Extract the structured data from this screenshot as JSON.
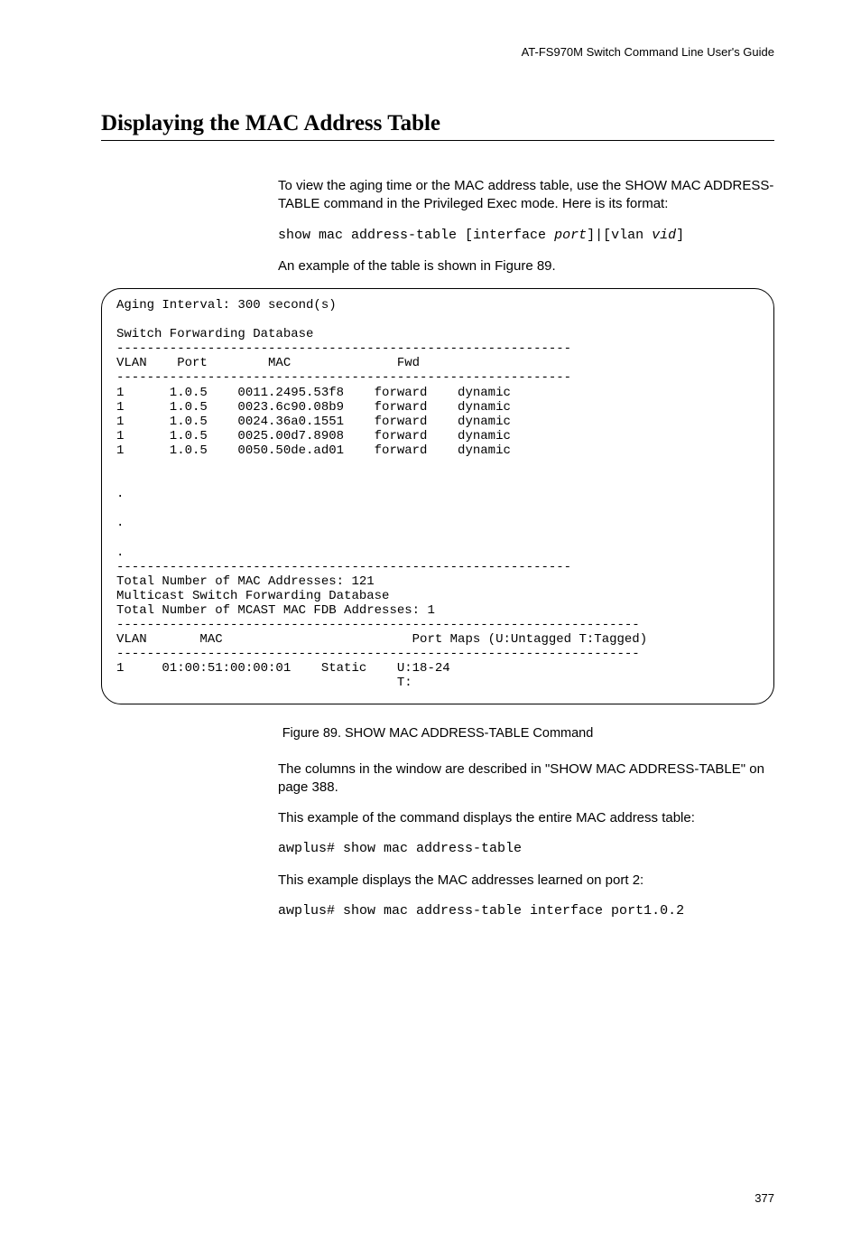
{
  "header": {
    "guide_title": "AT-FS970M Switch Command Line User's Guide"
  },
  "title": "Displaying the MAC Address Table",
  "para1": "To view the aging time or the MAC address table, use the SHOW MAC ADDRESS-TABLE command in the Privileged Exec mode. Here is its format:",
  "syntax": {
    "prefix": "show mac address-table [interface ",
    "arg1": "port",
    "mid": "]|[vlan ",
    "arg2": "vid",
    "suffix": "]"
  },
  "para2": "An example of the table is shown in Figure 89.",
  "terminal": {
    "aging_line": "Aging Interval: 300 second(s)",
    "db_title": "Switch Forwarding Database",
    "rule60": "------------------------------------------------------------",
    "hdr_row": "VLAN    Port        MAC              Fwd",
    "rows": [
      "1      1.0.5    0011.2495.53f8    forward    dynamic",
      "1      1.0.5    0023.6c90.08b9    forward    dynamic",
      "1      1.0.5    0024.36a0.1551    forward    dynamic",
      "1      1.0.5    0025.00d7.8908    forward    dynamic",
      "1      1.0.5    0050.50de.ad01    forward    dynamic"
    ],
    "dots": ".",
    "total_mac": "Total Number of MAC Addresses: 121",
    "mcast_title": "Multicast Switch Forwarding Database",
    "mcast_total": "Total Number of MCAST MAC FDB Addresses: 1",
    "rule69": "---------------------------------------------------------------------",
    "mcast_hdr": "VLAN       MAC                         Port Maps (U:Untagged T:Tagged)",
    "mcast_row1": "1     01:00:51:00:00:01    Static    U:18-24",
    "mcast_row2": "                                     T:"
  },
  "figure_caption": "Figure 89. SHOW MAC ADDRESS-TABLE Command",
  "para3": "The columns in the window are described in \"SHOW MAC ADDRESS-TABLE\" on page 388.",
  "para4": "This example of the command displays the entire MAC address table:",
  "cmd1": "awplus# show mac address-table",
  "para5": "This example displays the MAC addresses learned on port 2:",
  "cmd2": "awplus# show mac address-table interface port1.0.2",
  "page_number": "377"
}
